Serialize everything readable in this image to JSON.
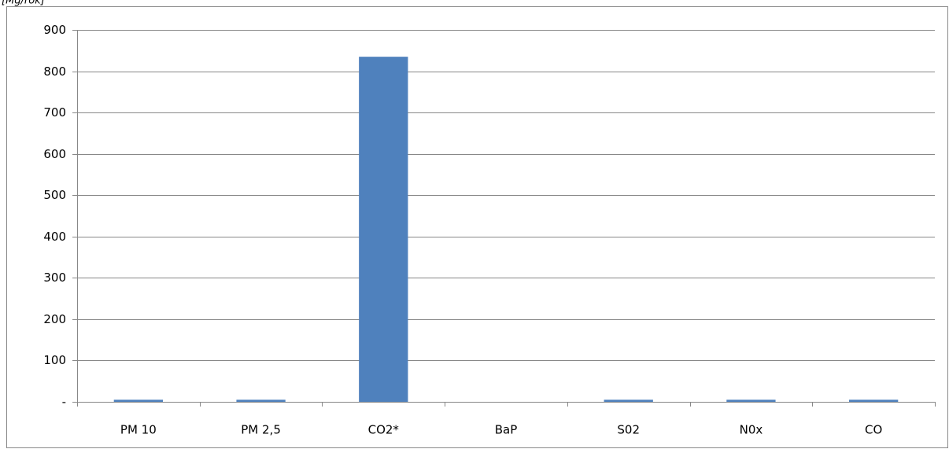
{
  "chart_data": {
    "type": "bar",
    "y_label": "[Mg/rok]",
    "categories": [
      "PM 10",
      "PM 2,5",
      "CO2*",
      "BaP",
      "S02",
      "N0x",
      "CO"
    ],
    "values": [
      5,
      5,
      835,
      0,
      5,
      5,
      5
    ],
    "color": "#4f81bd",
    "ylim": [
      0,
      900
    ],
    "yticks": [
      {
        "value": 0,
        "label": "-"
      },
      100,
      200,
      300,
      400,
      500,
      600,
      700,
      800,
      900
    ],
    "grid": true
  }
}
